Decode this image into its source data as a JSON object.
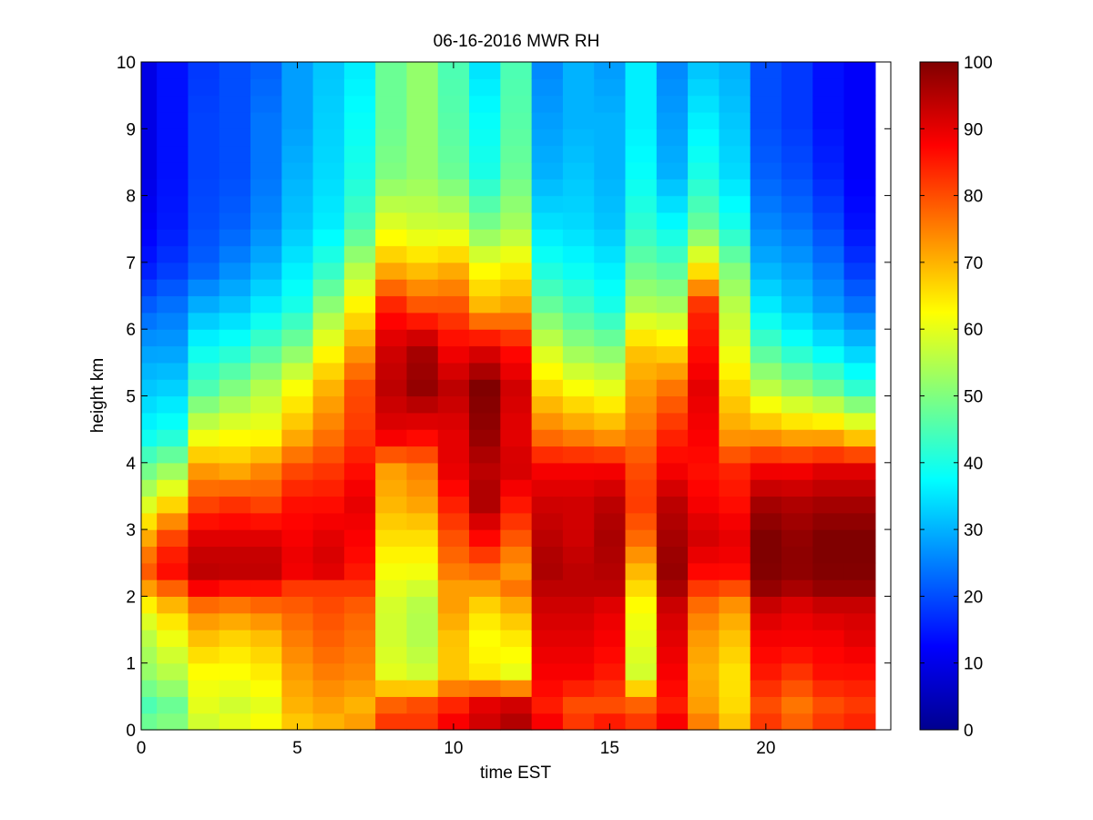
{
  "chart_data": {
    "type": "heatmap",
    "title": "06-16-2016 MWR RH",
    "xlabel": "time EST",
    "ylabel": "height km",
    "xlim": [
      0,
      24
    ],
    "ylim": [
      0,
      10
    ],
    "xticks": [
      0,
      5,
      10,
      15,
      20
    ],
    "yticks": [
      0,
      1,
      2,
      3,
      4,
      5,
      6,
      7,
      8,
      9,
      10
    ],
    "colormap": "jet",
    "clim": [
      0,
      100
    ],
    "colorbar_ticks": [
      0,
      10,
      20,
      30,
      40,
      50,
      60,
      70,
      80,
      90,
      100
    ],
    "time_hours": [
      0,
      1,
      2,
      3,
      4,
      5,
      6,
      7,
      8,
      9,
      10,
      11,
      12,
      13,
      14,
      15,
      16,
      17,
      18,
      19,
      20,
      21,
      22,
      23
    ],
    "height_km": [
      0,
      0.25,
      0.5,
      0.75,
      1.0,
      1.25,
      1.5,
      1.75,
      2.0,
      2.25,
      2.5,
      2.75,
      3.0,
      3.25,
      3.5,
      3.75,
      4.0,
      4.25,
      4.5,
      4.75,
      5.0,
      5.25,
      5.5,
      5.75,
      6.0,
      6.25,
      6.5,
      6.75,
      7.0,
      7.25,
      7.5,
      7.75,
      8.0,
      8.25,
      8.5,
      8.75,
      9.0,
      9.25,
      9.5,
      9.75
    ],
    "profile_nodes_km": [
      0,
      0.25,
      0.7,
      1.2,
      1.7,
      2.0,
      2.3,
      2.8,
      3.3,
      3.8,
      4.3,
      5.0,
      5.6,
      6.2,
      6.8,
      7.4,
      8.2,
      9.0,
      9.75
    ],
    "rh_percent_at_nodes": [
      [
        48,
        45,
        52,
        55,
        62,
        72,
        80,
        70,
        58,
        48,
        38,
        32,
        28,
        22,
        15,
        12,
        10,
        10,
        10
      ],
      [
        50,
        48,
        55,
        60,
        68,
        78,
        88,
        80,
        65,
        52,
        40,
        33,
        28,
        24,
        18,
        15,
        14,
        14,
        14
      ],
      [
        58,
        60,
        62,
        68,
        75,
        88,
        95,
        90,
        80,
        72,
        60,
        45,
        38,
        30,
        22,
        20,
        19,
        19,
        18
      ],
      [
        60,
        58,
        62,
        66,
        74,
        86,
        95,
        90,
        82,
        70,
        62,
        50,
        40,
        32,
        26,
        22,
        20,
        20,
        20
      ],
      [
        62,
        60,
        64,
        68,
        76,
        86,
        95,
        90,
        80,
        74,
        62,
        55,
        45,
        36,
        30,
        26,
        24,
        24,
        22
      ],
      [
        68,
        70,
        72,
        75,
        78,
        82,
        90,
        88,
        86,
        80,
        70,
        62,
        50,
        40,
        36,
        32,
        30,
        28,
        28
      ],
      [
        70,
        72,
        75,
        78,
        80,
        82,
        92,
        90,
        86,
        82,
        76,
        70,
        62,
        52,
        42,
        36,
        34,
        33,
        32
      ],
      [
        72,
        70,
        74,
        76,
        78,
        82,
        86,
        88,
        90,
        86,
        82,
        80,
        72,
        64,
        55,
        45,
        40,
        38,
        36
      ],
      [
        82,
        78,
        60,
        58,
        58,
        60,
        62,
        66,
        70,
        72,
        90,
        94,
        92,
        85,
        70,
        60,
        50,
        48,
        48
      ],
      [
        82,
        80,
        58,
        55,
        55,
        58,
        62,
        66,
        72,
        75,
        88,
        98,
        96,
        80,
        68,
        58,
        52,
        52,
        52
      ],
      [
        88,
        84,
        68,
        68,
        72,
        72,
        76,
        80,
        85,
        90,
        90,
        94,
        88,
        80,
        70,
        58,
        48,
        46,
        45
      ],
      [
        92,
        90,
        65,
        62,
        66,
        72,
        78,
        88,
        96,
        94,
        98,
        100,
        90,
        70,
        62,
        50,
        40,
        38,
        35
      ],
      [
        95,
        92,
        60,
        64,
        70,
        76,
        72,
        80,
        86,
        92,
        90,
        92,
        86,
        72,
        64,
        54,
        48,
        46,
        45
      ],
      [
        88,
        85,
        88,
        90,
        92,
        94,
        96,
        94,
        92,
        88,
        76,
        66,
        58,
        48,
        40,
        35,
        30,
        28,
        26
      ],
      [
        82,
        80,
        88,
        90,
        92,
        94,
        94,
        92,
        92,
        88,
        74,
        62,
        52,
        44,
        38,
        34,
        32,
        30,
        30
      ],
      [
        85,
        80,
        85,
        88,
        90,
        94,
        95,
        96,
        94,
        88,
        72,
        60,
        50,
        40,
        36,
        32,
        30,
        30,
        28
      ],
      [
        82,
        78,
        58,
        60,
        62,
        66,
        70,
        78,
        82,
        80,
        76,
        72,
        68,
        55,
        48,
        42,
        38,
        36,
        36
      ],
      [
        88,
        85,
        88,
        90,
        92,
        96,
        98,
        96,
        94,
        88,
        84,
        76,
        66,
        54,
        46,
        38,
        30,
        28,
        26
      ],
      [
        75,
        72,
        70,
        72,
        76,
        82,
        88,
        92,
        88,
        86,
        88,
        90,
        86,
        84,
        64,
        48,
        40,
        36,
        32
      ],
      [
        68,
        66,
        65,
        68,
        72,
        80,
        88,
        90,
        86,
        84,
        72,
        66,
        60,
        56,
        50,
        40,
        34,
        32,
        30
      ],
      [
        82,
        80,
        85,
        88,
        92,
        98,
        100,
        100,
        96,
        88,
        72,
        56,
        45,
        36,
        30,
        26,
        22,
        20,
        20
      ],
      [
        78,
        76,
        82,
        88,
        90,
        96,
        99,
        98,
        95,
        88,
        70,
        52,
        40,
        32,
        28,
        24,
        20,
        18,
        18
      ],
      [
        82,
        80,
        86,
        88,
        92,
        98,
        100,
        100,
        96,
        90,
        70,
        48,
        36,
        28,
        24,
        20,
        16,
        14,
        14
      ],
      [
        84,
        82,
        86,
        90,
        92,
        98,
        100,
        100,
        96,
        90,
        66,
        42,
        32,
        24,
        18,
        14,
        12,
        12,
        12
      ]
    ]
  }
}
